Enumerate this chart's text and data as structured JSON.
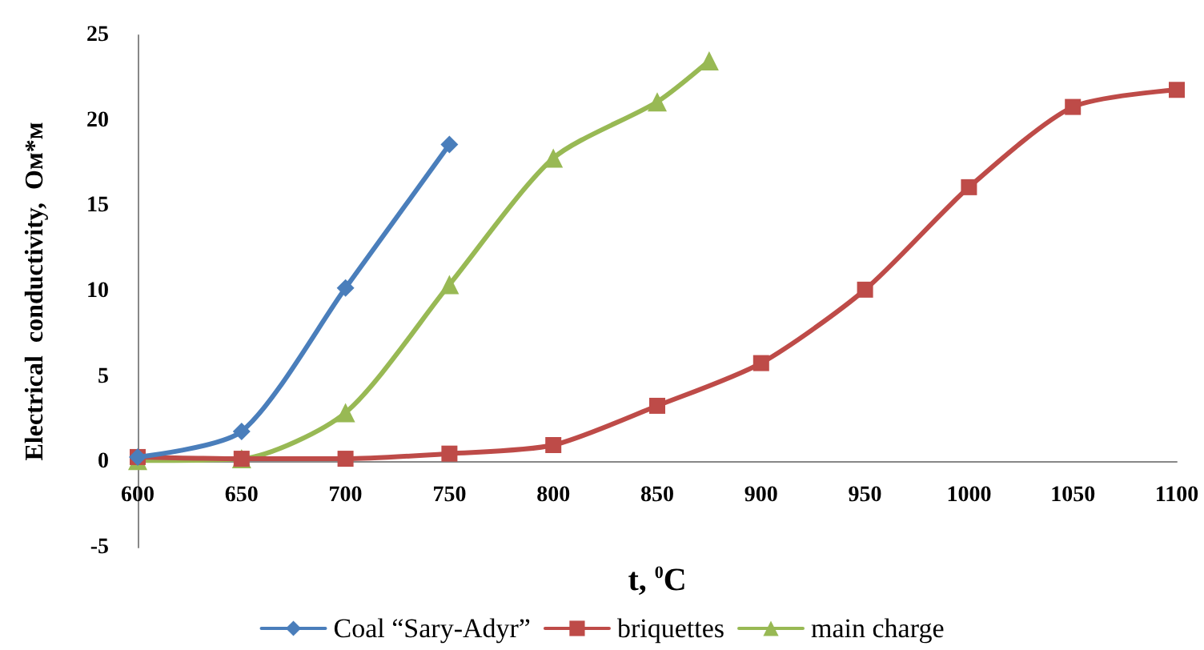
{
  "chart_data": {
    "type": "line",
    "xlabel": "t, $^{0}$C",
    "ylabel": "Electrical  conductivity,  Ом*м",
    "xlim": [
      600,
      1100
    ],
    "xticks": [
      600,
      650,
      700,
      750,
      800,
      850,
      900,
      950,
      1000,
      1050,
      1100
    ],
    "ylim": [
      -5,
      25
    ],
    "yticks": [
      -5,
      0,
      5,
      10,
      15,
      20,
      25
    ],
    "grid": false,
    "legend": "bottom",
    "series": [
      {
        "name": "Coal “Sary-Adyr”",
        "color": "#4a7ebb",
        "marker": "diamond",
        "x": [
          600,
          650,
          700,
          750
        ],
        "values": [
          0.3,
          1.8,
          10.2,
          18.6
        ]
      },
      {
        "name": "briquettes",
        "color": "#be4b48",
        "marker": "square",
        "x": [
          600,
          650,
          700,
          750,
          800,
          850,
          900,
          950,
          1000,
          1050,
          1100
        ],
        "values": [
          0.3,
          0.2,
          0.2,
          0.5,
          1.0,
          3.3,
          5.8,
          10.1,
          16.1,
          20.8,
          21.8
        ]
      },
      {
        "name": "main charge",
        "color": "#98b954",
        "marker": "triangle",
        "x": [
          600,
          650,
          700,
          750,
          800,
          850,
          875
        ],
        "values": [
          0.1,
          0.2,
          2.9,
          10.4,
          17.8,
          21.1,
          23.5
        ]
      }
    ]
  }
}
